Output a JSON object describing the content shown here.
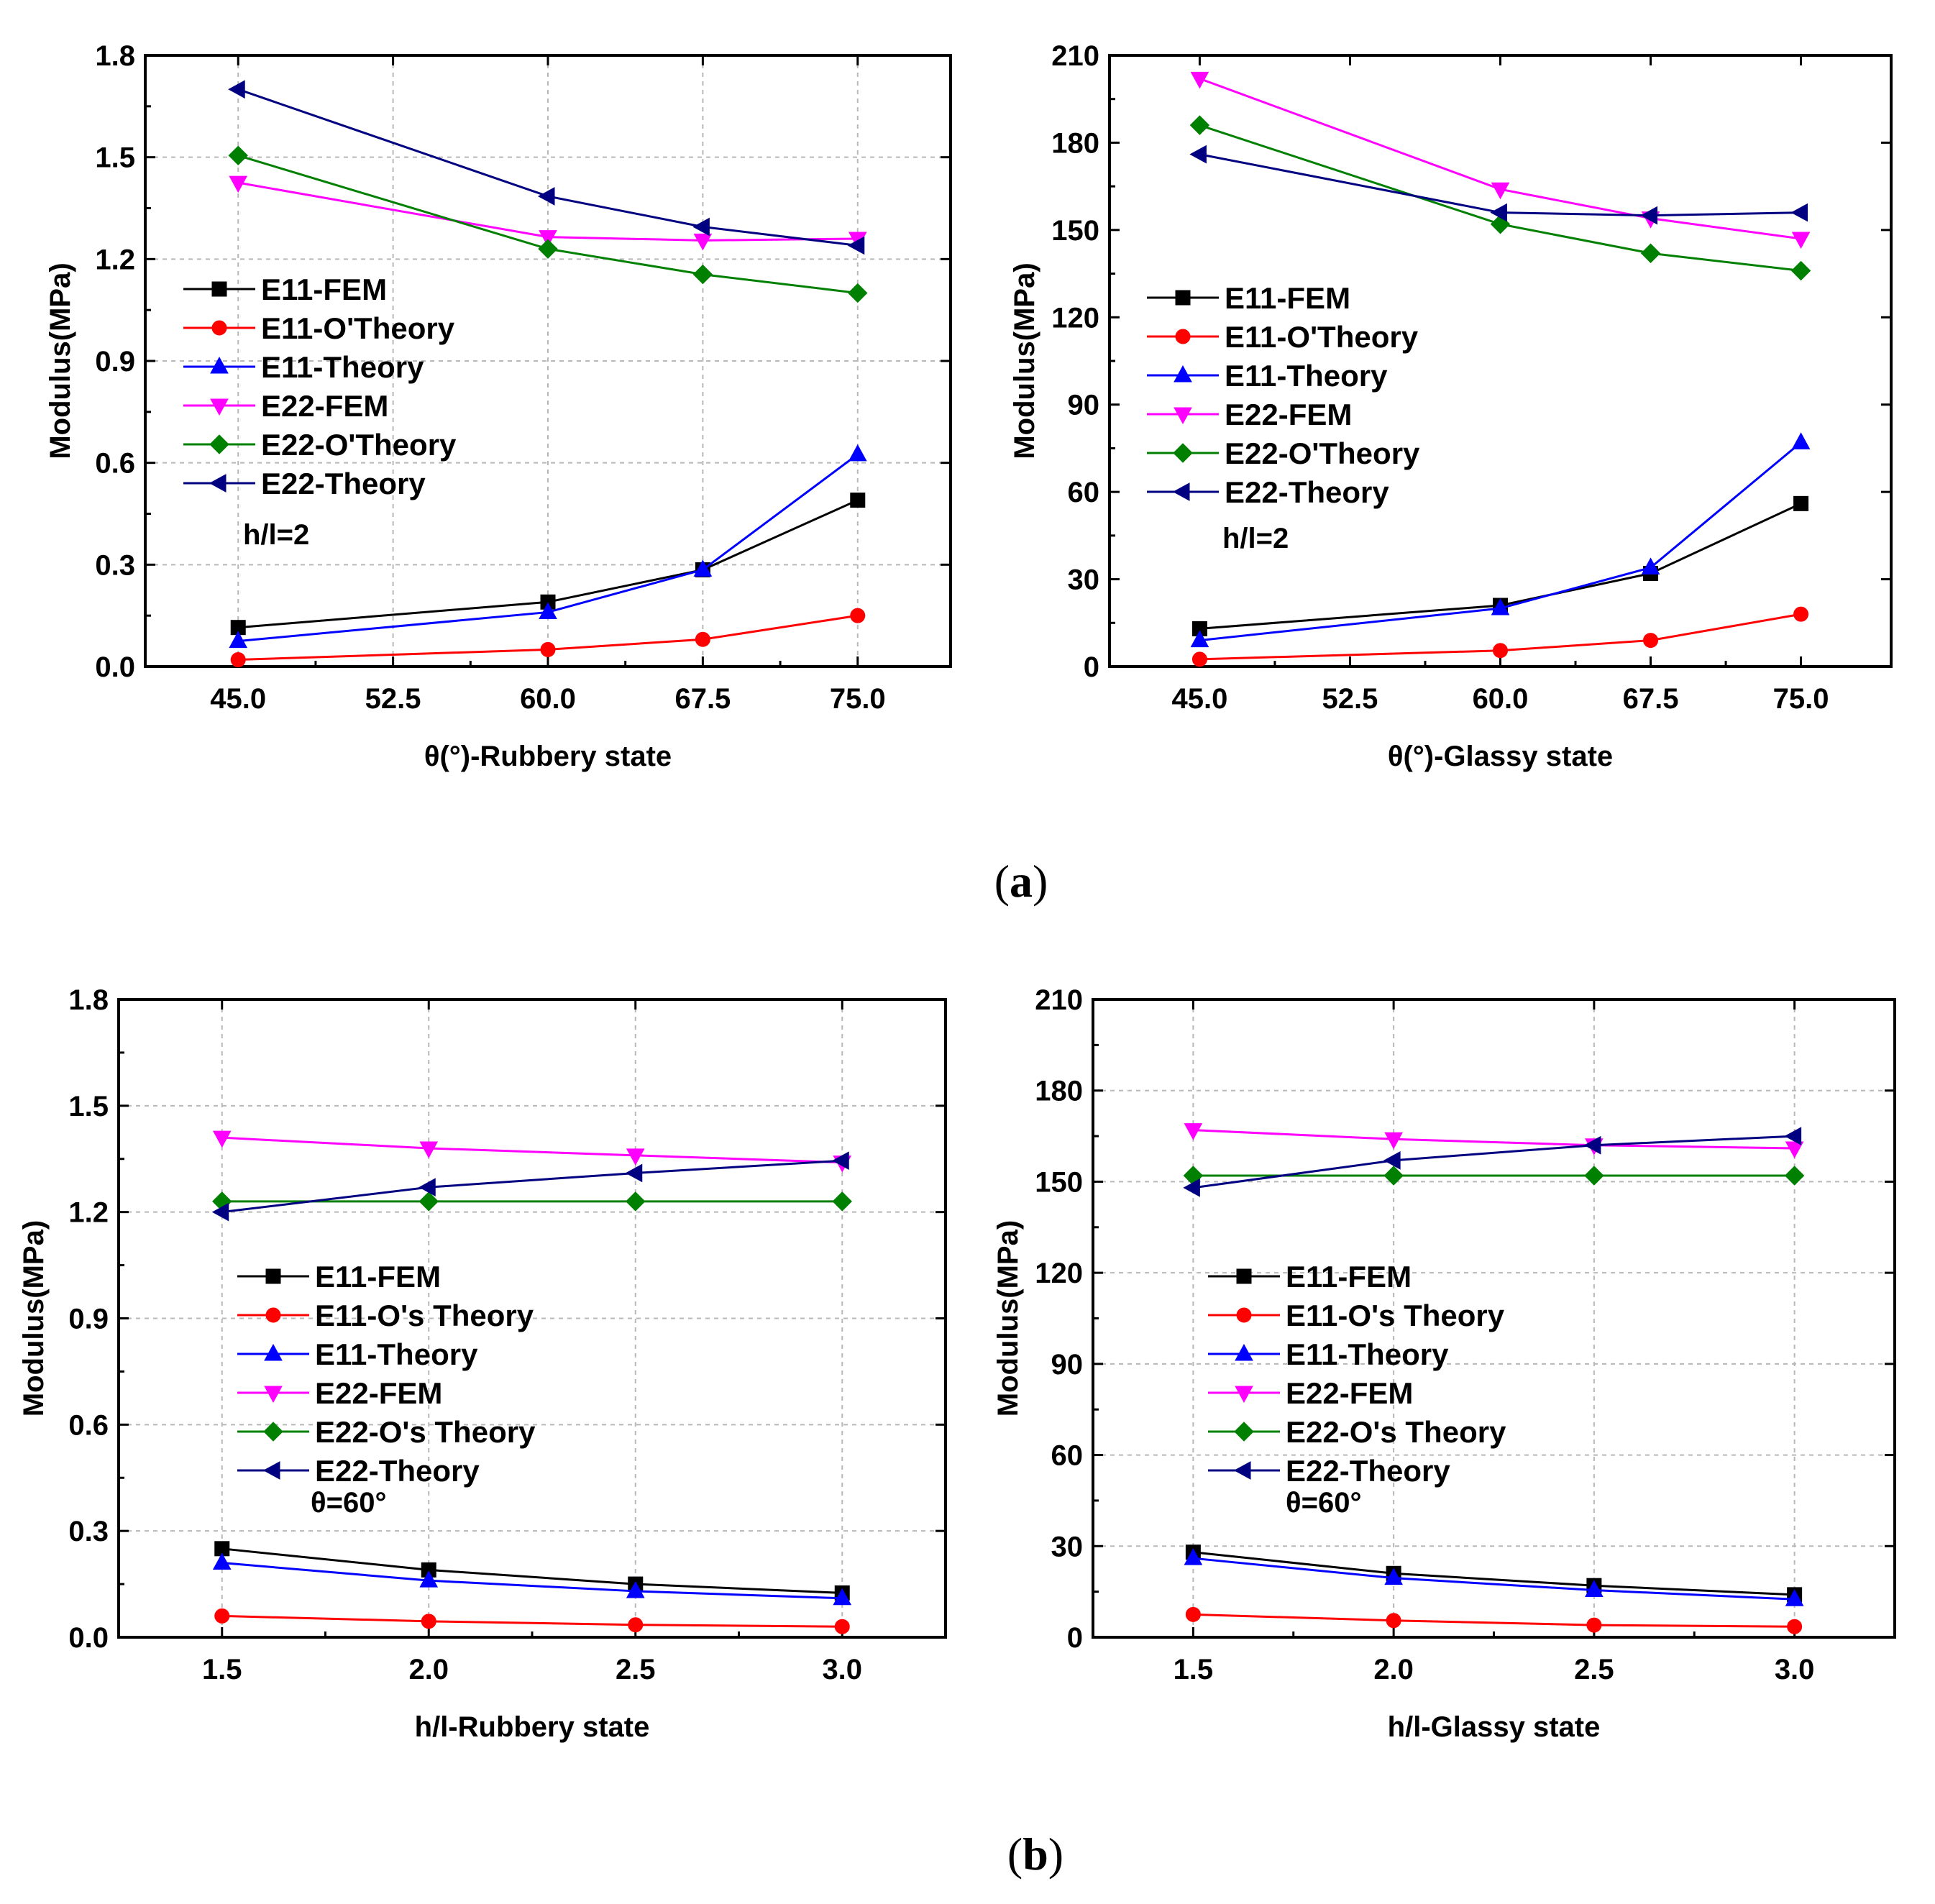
{
  "captions": {
    "a": "a",
    "b": "b"
  },
  "colors": {
    "E11-FEM": "#000000",
    "E11-Otheory": "#ff0000",
    "E11-Theory": "#0000ff",
    "E22-FEM": "#ff00ff",
    "E22-Otheory": "#008000",
    "E22-Theory": "#000080"
  },
  "chart_data": [
    {
      "type": "line",
      "xlabel": "θ(°)-Rubbery state",
      "ylabel": "Modulus(MPa)",
      "x": [
        45.0,
        60.0,
        67.5,
        75.0
      ],
      "xticks": [
        "45.0",
        "52.5",
        "60.0",
        "67.5",
        "75.0"
      ],
      "xlim": [
        40.5,
        79.5
      ],
      "ylim": [
        0,
        1.8
      ],
      "yticks": [
        "0.0",
        "0.3",
        "0.6",
        "0.9",
        "1.2",
        "1.5",
        "1.8"
      ],
      "grid": true,
      "legend_position": "left",
      "annotation": "h/l=2",
      "series": [
        {
          "name": "E11-FEM",
          "marker": "square",
          "color": "#000000",
          "values": [
            0.115,
            0.19,
            0.285,
            0.49
          ]
        },
        {
          "name": "E11-O'Theory",
          "marker": "circle",
          "color": "#ff0000",
          "values": [
            0.02,
            0.05,
            0.08,
            0.15
          ]
        },
        {
          "name": "E11-Theory",
          "marker": "triangle-up",
          "color": "#0000ff",
          "values": [
            0.075,
            0.16,
            0.285,
            0.625
          ]
        },
        {
          "name": "E22-FEM",
          "marker": "triangle-down",
          "color": "#ff00ff",
          "values": [
            1.425,
            1.265,
            1.255,
            1.26
          ]
        },
        {
          "name": "E22-O'Theory",
          "marker": "diamond",
          "color": "#008000",
          "values": [
            1.505,
            1.23,
            1.155,
            1.1
          ]
        },
        {
          "name": "E22-Theory",
          "marker": "triangle-left",
          "color": "#000080",
          "values": [
            1.7,
            1.385,
            1.295,
            1.24
          ]
        }
      ]
    },
    {
      "type": "line",
      "xlabel": "θ(°)-Glassy state",
      "ylabel": "Modulus(MPa)",
      "x": [
        45.0,
        60.0,
        67.5,
        75.0
      ],
      "xticks": [
        "45.0",
        "52.5",
        "60.0",
        "67.5",
        "75.0"
      ],
      "xlim": [
        40.5,
        79.5
      ],
      "ylim": [
        0,
        210
      ],
      "yticks": [
        "0",
        "30",
        "60",
        "90",
        "120",
        "150",
        "180",
        "210"
      ],
      "grid": false,
      "legend_position": "left",
      "annotation": "h/l=2",
      "series": [
        {
          "name": "E11-FEM",
          "marker": "square",
          "color": "#000000",
          "values": [
            13,
            21,
            32,
            56
          ]
        },
        {
          "name": "E11-O'Theory",
          "marker": "circle",
          "color": "#ff0000",
          "values": [
            2.5,
            5.5,
            9,
            18
          ]
        },
        {
          "name": "E11-Theory",
          "marker": "triangle-up",
          "color": "#0000ff",
          "values": [
            9,
            20,
            34,
            77
          ]
        },
        {
          "name": "E22-FEM",
          "marker": "triangle-down",
          "color": "#ff00ff",
          "values": [
            202,
            164,
            154,
            147
          ]
        },
        {
          "name": "E22-O'Theory",
          "marker": "diamond",
          "color": "#008000",
          "values": [
            186,
            152,
            142,
            136
          ]
        },
        {
          "name": "E22-Theory",
          "marker": "triangle-left",
          "color": "#000080",
          "values": [
            176,
            156,
            155,
            156
          ]
        }
      ]
    },
    {
      "type": "line",
      "xlabel": "h/l-Rubbery state",
      "ylabel": "Modulus(MPa)",
      "x": [
        1.5,
        2.0,
        2.5,
        3.0
      ],
      "xticks": [
        "1.5",
        "2.0",
        "2.5",
        "3.0"
      ],
      "xlim": [
        1.25,
        3.25
      ],
      "ylim": [
        0,
        1.8
      ],
      "yticks": [
        "0.0",
        "0.3",
        "0.6",
        "0.9",
        "1.2",
        "1.5",
        "1.8"
      ],
      "grid": true,
      "legend_position": "left",
      "annotation": "θ=60°",
      "series": [
        {
          "name": "E11-FEM",
          "marker": "square",
          "color": "#000000",
          "values": [
            0.25,
            0.19,
            0.15,
            0.125
          ]
        },
        {
          "name": "E11-O's Theory",
          "marker": "circle",
          "color": "#ff0000",
          "values": [
            0.06,
            0.045,
            0.035,
            0.03
          ]
        },
        {
          "name": "E11-Theory",
          "marker": "triangle-up",
          "color": "#0000ff",
          "values": [
            0.21,
            0.16,
            0.13,
            0.11
          ]
        },
        {
          "name": "E22-FEM",
          "marker": "triangle-down",
          "color": "#ff00ff",
          "values": [
            1.41,
            1.38,
            1.36,
            1.34
          ]
        },
        {
          "name": "E22-O's Theory",
          "marker": "diamond",
          "color": "#008000",
          "values": [
            1.23,
            1.23,
            1.23,
            1.23
          ]
        },
        {
          "name": "E22-Theory",
          "marker": "triangle-left",
          "color": "#000080",
          "values": [
            1.2,
            1.27,
            1.31,
            1.345
          ]
        }
      ]
    },
    {
      "type": "line",
      "xlabel": "h/l-Glassy state",
      "ylabel": "Modulus(MPa)",
      "x": [
        1.5,
        2.0,
        2.5,
        3.0
      ],
      "xticks": [
        "1.5",
        "2.0",
        "2.5",
        "3.0"
      ],
      "xlim": [
        1.25,
        3.25
      ],
      "ylim": [
        0,
        210
      ],
      "yticks": [
        "0",
        "30",
        "60",
        "90",
        "120",
        "150",
        "180",
        "210"
      ],
      "grid": true,
      "legend_position": "left",
      "annotation": "θ=60°",
      "series": [
        {
          "name": "E11-FEM",
          "marker": "square",
          "color": "#000000",
          "values": [
            28,
            21,
            17,
            14
          ]
        },
        {
          "name": "E11-O's Theory",
          "marker": "circle",
          "color": "#ff0000",
          "values": [
            7.5,
            5.5,
            4,
            3.5
          ]
        },
        {
          "name": "E11-Theory",
          "marker": "triangle-up",
          "color": "#0000ff",
          "values": [
            26,
            19.5,
            15.5,
            12.5
          ]
        },
        {
          "name": "E22-FEM",
          "marker": "triangle-down",
          "color": "#ff00ff",
          "values": [
            167,
            164,
            162,
            161
          ]
        },
        {
          "name": "E22-O's Theory",
          "marker": "diamond",
          "color": "#008000",
          "values": [
            152,
            152,
            152,
            152
          ]
        },
        {
          "name": "E22-Theory",
          "marker": "triangle-left",
          "color": "#000080",
          "values": [
            148,
            157,
            162,
            165
          ]
        }
      ]
    }
  ]
}
